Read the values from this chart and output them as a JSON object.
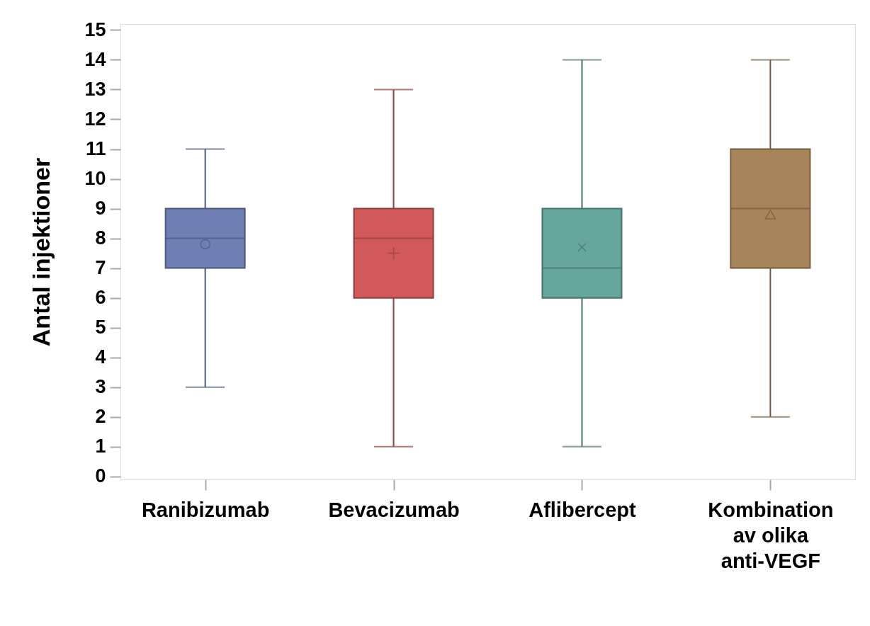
{
  "chart_data": {
    "type": "box",
    "ylabel": "Antal injektioner",
    "categories": [
      "Ranibizumab",
      "Bevacizumab",
      "Aflibercept",
      "Kombination av olika anti-VEGF"
    ],
    "ylim": [
      -0.1,
      15.2
    ],
    "yticks": [
      0,
      1,
      2,
      3,
      4,
      5,
      6,
      7,
      8,
      9,
      10,
      11,
      12,
      13,
      14,
      15
    ],
    "grid": false,
    "series": [
      {
        "color": "#6f7fb3",
        "marker": "circle",
        "boxes": [
          {
            "low": 3,
            "q1": 7,
            "median": 8,
            "q3": 9,
            "high": 11,
            "mean": 7.8
          },
          null,
          null,
          null
        ]
      },
      {
        "color": "#d05a5a",
        "marker": "cross",
        "boxes": [
          null,
          {
            "low": 1,
            "q1": 6,
            "median": 8,
            "q3": 9,
            "high": 13,
            "mean": 7.5
          },
          null,
          null
        ]
      },
      {
        "color": "#66a69d",
        "marker": "x",
        "boxes": [
          null,
          null,
          {
            "low": 1,
            "q1": 6,
            "median": 7,
            "q3": 9,
            "high": 14,
            "mean": 7.7
          },
          null
        ]
      },
      {
        "color": "#a8845a",
        "marker": "triangle",
        "boxes": [
          null,
          null,
          null,
          {
            "low": 2,
            "q1": 7,
            "median": 9,
            "q3": 11,
            "high": 14,
            "mean": 8.8
          }
        ]
      }
    ]
  }
}
